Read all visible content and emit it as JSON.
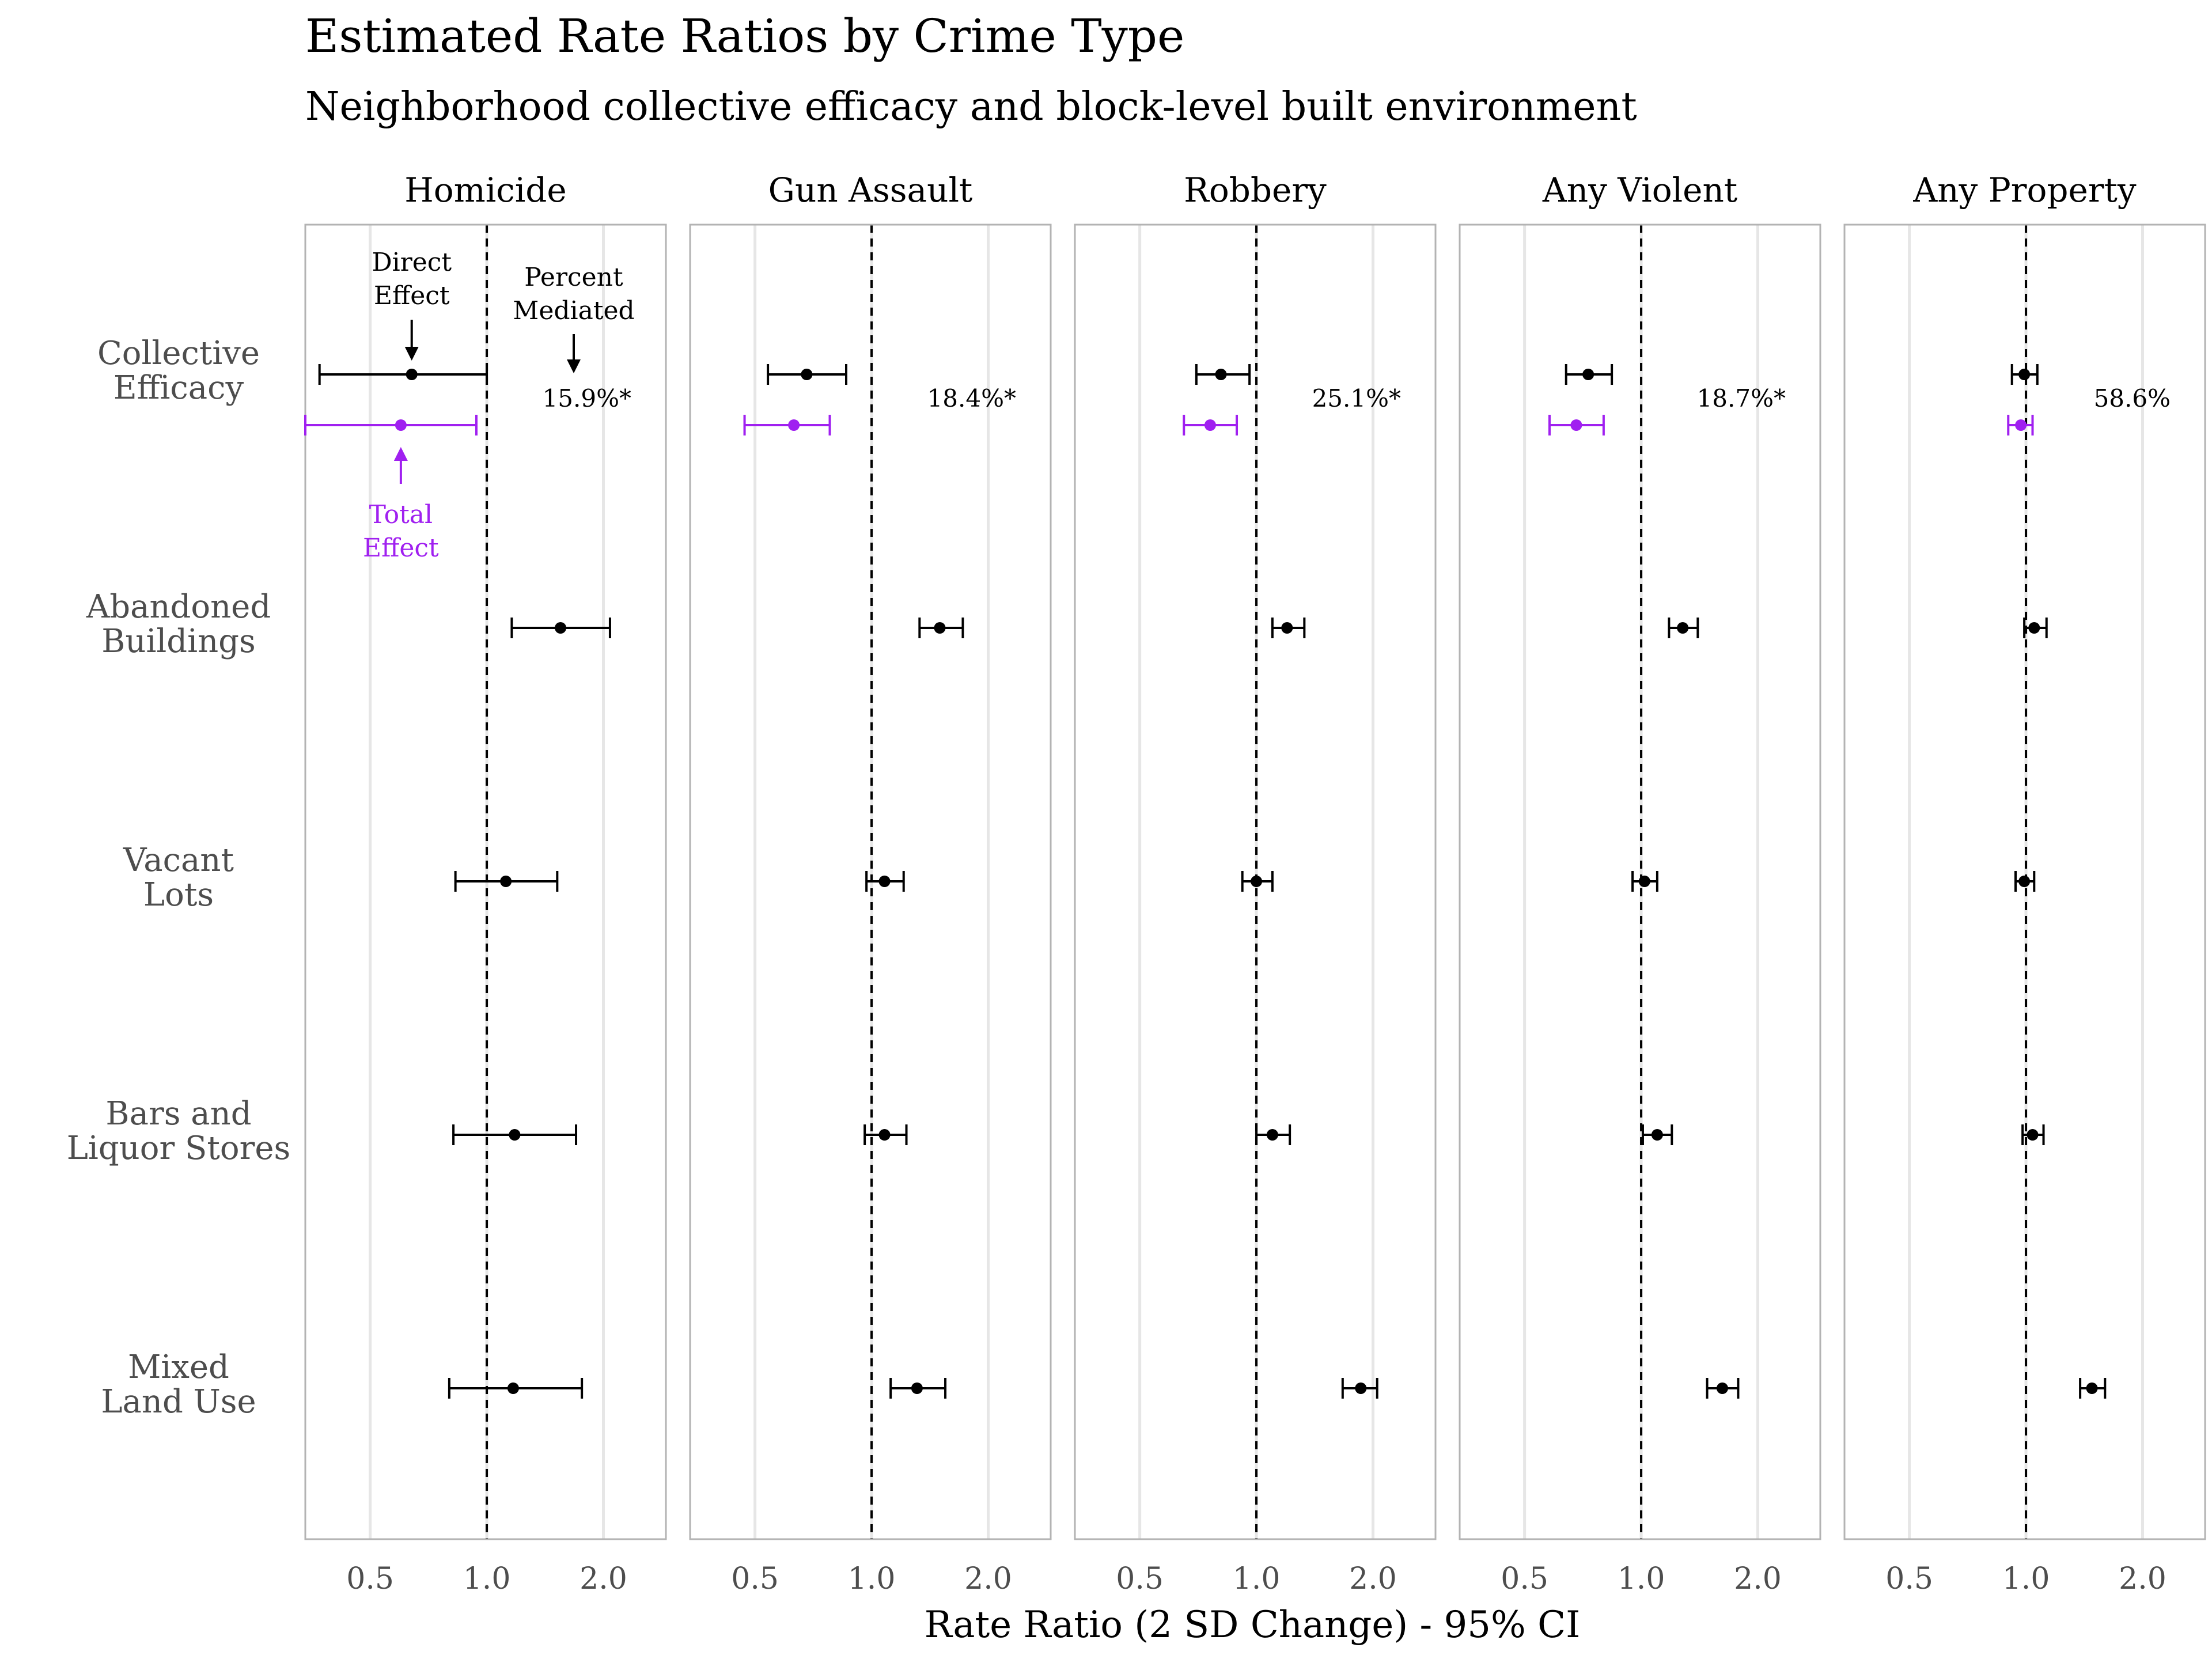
{
  "title": "Estimated Rate Ratios by Crime Type",
  "subtitle": "Neighborhood collective efficacy and block-level built environment",
  "colors": {
    "direct": "#000000",
    "total": "#a020f0",
    "panel_border": "#b3b3b3",
    "grid": "#e6e6e6",
    "text": "#000000",
    "axis_text": "#4d4d4d"
  },
  "annotations": {
    "direct_effect": [
      "Direct",
      "Effect"
    ],
    "percent_mediated": [
      "Percent",
      "Mediated"
    ],
    "total_effect": [
      "Total",
      "Effect"
    ]
  },
  "chart_data": {
    "type": "forest",
    "x_scale": "log",
    "x_ticks": [
      0.5,
      1.0,
      2.0
    ],
    "x_tick_labels": [
      "0.5",
      "1.0",
      "2.0"
    ],
    "xlim": [
      0.34,
      2.9
    ],
    "reference_line": 1.0,
    "xlabel": "Rate Ratio (2 SD Change) - 95% CI",
    "grid": true,
    "rows": [
      [
        "Collective",
        "Efficacy"
      ],
      [
        "Abandoned",
        "Buildings"
      ],
      [
        "Vacant",
        "Lots"
      ],
      [
        "Bars and",
        "Liquor Stores"
      ],
      [
        "Mixed",
        "Land Use"
      ]
    ],
    "panels": [
      {
        "name": "Homicide",
        "percent_mediated": "15.9%*",
        "total_effect": {
          "est": 0.6,
          "lo": 0.34,
          "hi": 0.94
        },
        "direct": [
          {
            "est": 0.64,
            "lo": 0.37,
            "hi": 1.0
          },
          {
            "est": 1.55,
            "lo": 1.16,
            "hi": 2.08
          },
          {
            "est": 1.12,
            "lo": 0.83,
            "hi": 1.52
          },
          {
            "est": 1.18,
            "lo": 0.82,
            "hi": 1.7
          },
          {
            "est": 1.17,
            "lo": 0.8,
            "hi": 1.76
          }
        ]
      },
      {
        "name": "Gun Assault",
        "percent_mediated": "18.4%*",
        "total_effect": {
          "est": 0.63,
          "lo": 0.47,
          "hi": 0.78
        },
        "direct": [
          {
            "est": 0.68,
            "lo": 0.54,
            "hi": 0.86
          },
          {
            "est": 1.5,
            "lo": 1.33,
            "hi": 1.72
          },
          {
            "est": 1.08,
            "lo": 0.97,
            "hi": 1.21
          },
          {
            "est": 1.08,
            "lo": 0.96,
            "hi": 1.23
          },
          {
            "est": 1.31,
            "lo": 1.12,
            "hi": 1.55
          }
        ]
      },
      {
        "name": "Robbery",
        "percent_mediated": "25.1%*",
        "total_effect": {
          "est": 0.76,
          "lo": 0.65,
          "hi": 0.89
        },
        "direct": [
          {
            "est": 0.81,
            "lo": 0.7,
            "hi": 0.96
          },
          {
            "est": 1.2,
            "lo": 1.1,
            "hi": 1.33
          },
          {
            "est": 1.0,
            "lo": 0.92,
            "hi": 1.1
          },
          {
            "est": 1.1,
            "lo": 1.0,
            "hi": 1.22
          },
          {
            "est": 1.86,
            "lo": 1.67,
            "hi": 2.05
          }
        ]
      },
      {
        "name": "Any Violent",
        "percent_mediated": "18.7%*",
        "total_effect": {
          "est": 0.68,
          "lo": 0.58,
          "hi": 0.8
        },
        "direct": [
          {
            "est": 0.73,
            "lo": 0.64,
            "hi": 0.84
          },
          {
            "est": 1.28,
            "lo": 1.18,
            "hi": 1.4
          },
          {
            "est": 1.02,
            "lo": 0.95,
            "hi": 1.1
          },
          {
            "est": 1.1,
            "lo": 1.01,
            "hi": 1.2
          },
          {
            "est": 1.62,
            "lo": 1.48,
            "hi": 1.78
          }
        ]
      },
      {
        "name": "Any Property",
        "percent_mediated": "58.6%",
        "total_effect": {
          "est": 0.97,
          "lo": 0.9,
          "hi": 1.04
        },
        "direct": [
          {
            "est": 0.99,
            "lo": 0.92,
            "hi": 1.07
          },
          {
            "est": 1.05,
            "lo": 0.99,
            "hi": 1.13
          },
          {
            "est": 0.99,
            "lo": 0.94,
            "hi": 1.05
          },
          {
            "est": 1.04,
            "lo": 0.98,
            "hi": 1.11
          },
          {
            "est": 1.48,
            "lo": 1.38,
            "hi": 1.6
          }
        ]
      }
    ]
  }
}
